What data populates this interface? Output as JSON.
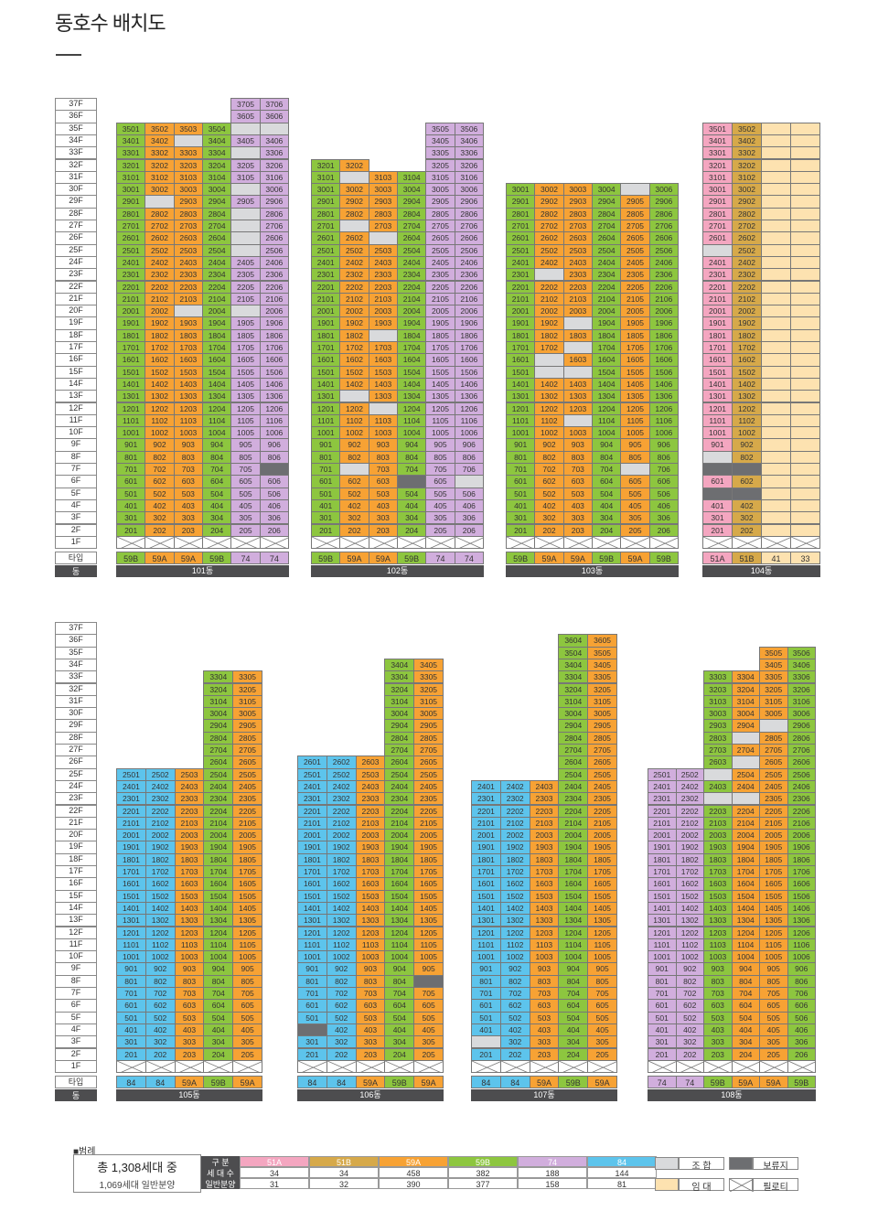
{
  "page": {
    "title": "동호수 배치도"
  },
  "colors": {
    "59B": "#8dc63f",
    "59A": "#f7a234",
    "74": "#d1aedd",
    "84": "#5dc4ec",
    "51A": "#f4a6c0",
    "51B": "#d6a94a",
    "J": "#d9dadc",
    "B": "#6d6e71",
    "R": "#fde2b0"
  },
  "labels": {
    "type_row": "타입",
    "dong_row": "동"
  },
  "floor_labels": [
    "37F",
    "36F",
    "35F",
    "34F",
    "33F",
    "32F",
    "31F",
    "30F",
    "29F",
    "28F",
    "27F",
    "26F",
    "25F",
    "24F",
    "23F",
    "22F",
    "21F",
    "20F",
    "19F",
    "18F",
    "17F",
    "16F",
    "15F",
    "14F",
    "13F",
    "12F",
    "11F",
    "10F",
    "9F",
    "8F",
    "7F",
    "6F",
    "5F",
    "4F",
    "3F",
    "2F",
    "1F"
  ],
  "buildings": [
    {
      "name": "101동",
      "types": [
        "59B",
        "59A",
        "59A",
        "59B",
        "74",
        "74"
      ],
      "columns": [
        {
          "top": 35,
          "overrides": {}
        },
        {
          "top": 35,
          "overrides": {
            "29": "J"
          }
        },
        {
          "top": 35,
          "overrides": {
            "34": "J",
            "20": "J"
          }
        },
        {
          "top": 35,
          "overrides": {}
        },
        {
          "top": 37,
          "overrides": {
            "35": "J",
            "33": "J",
            "30": "J",
            "28": "J",
            "27": "J",
            "26": "J",
            "25": "J",
            "20": "J"
          }
        },
        {
          "top": 37,
          "overrides": {
            "35": "J",
            "7": "B"
          }
        }
      ]
    },
    {
      "name": "102동",
      "types": [
        "59B",
        "59A",
        "59A",
        "59B",
        "74",
        "74"
      ],
      "columns": [
        {
          "top": 32,
          "overrides": {}
        },
        {
          "top": 32,
          "overrides": {
            "31": "J",
            "27": "J",
            "13": "J",
            "7": "J"
          }
        },
        {
          "top": 31,
          "overrides": {
            "26": "J",
            "18": "J",
            "12": "J"
          }
        },
        {
          "top": 31,
          "overrides": {
            "6": "B"
          }
        },
        {
          "top": 35,
          "overrides": {}
        },
        {
          "top": 35,
          "overrides": {
            "6": "J"
          }
        }
      ]
    },
    {
      "name": "103동",
      "types": [
        "59B",
        "59A",
        "59A",
        "59B",
        "59A",
        "59B"
      ],
      "columns": [
        {
          "top": 30,
          "overrides": {}
        },
        {
          "top": 30,
          "overrides": {
            "23": "J",
            "16": "J",
            "15": "J"
          }
        },
        {
          "top": 30,
          "overrides": {
            "19": "J",
            "17": "J",
            "15": "J",
            "11": "J"
          }
        },
        {
          "top": 30,
          "overrides": {}
        },
        {
          "top": 30,
          "overrides": {
            "30": "J",
            "7": "J"
          }
        },
        {
          "top": 30,
          "overrides": {}
        }
      ]
    },
    {
      "name": "104동",
      "types": [
        "51A",
        "51B",
        "41",
        "33"
      ],
      "columns": [
        {
          "top": 35,
          "overrides": {
            "25": "J",
            "8": "J",
            "7": "B",
            "5": "B"
          }
        },
        {
          "top": 35,
          "overrides": {
            "7": "B",
            "5": "B"
          }
        },
        {
          "top": 35,
          "rental": true,
          "overrides": {}
        },
        {
          "top": 35,
          "rental": true,
          "overrides": {}
        }
      ]
    },
    {
      "name": "105동",
      "types": [
        "84",
        "84",
        "59A",
        "59B",
        "59A"
      ],
      "columns": [
        {
          "top": 25,
          "overrides": {}
        },
        {
          "top": 25,
          "overrides": {}
        },
        {
          "top": 25,
          "overrides": {}
        },
        {
          "top": 33,
          "overrides": {}
        },
        {
          "top": 33,
          "overrides": {}
        }
      ]
    },
    {
      "name": "106동",
      "types": [
        "84",
        "84",
        "59A",
        "59B",
        "59A"
      ],
      "columns": [
        {
          "top": 26,
          "overrides": {
            "4": "B"
          }
        },
        {
          "top": 26,
          "overrides": {}
        },
        {
          "top": 26,
          "overrides": {}
        },
        {
          "top": 34,
          "overrides": {}
        },
        {
          "top": 34,
          "overrides": {
            "8": "B"
          }
        }
      ]
    },
    {
      "name": "107동",
      "types": [
        "84",
        "84",
        "59A",
        "59B",
        "59A"
      ],
      "columns": [
        {
          "top": 24,
          "overrides": {
            "3": "J"
          }
        },
        {
          "top": 24,
          "overrides": {}
        },
        {
          "top": 24,
          "overrides": {}
        },
        {
          "top": 36,
          "overrides": {}
        },
        {
          "top": 36,
          "overrides": {}
        }
      ]
    },
    {
      "name": "108동",
      "types": [
        "74",
        "74",
        "59B",
        "59A",
        "59A",
        "59B"
      ],
      "columns": [
        {
          "top": 25,
          "overrides": {}
        },
        {
          "top": 25,
          "overrides": {}
        },
        {
          "top": 33,
          "overrides": {
            "25": "J",
            "23": "J"
          }
        },
        {
          "top": 33,
          "overrides": {
            "28": "J",
            "26": "J",
            "23": "J"
          }
        },
        {
          "top": 35,
          "overrides": {
            "29": "J"
          }
        },
        {
          "top": 35,
          "overrides": {}
        }
      ]
    }
  ],
  "legend": {
    "heading": "■범례",
    "total": "총 1,308세대 중",
    "general": "1,069세대 일반분양",
    "row_headers": [
      "구 분",
      "세 대 수",
      "일반분양"
    ],
    "types": [
      "51A",
      "51B",
      "59A",
      "59B",
      "74",
      "84"
    ],
    "households": [
      "34",
      "34",
      "458",
      "382",
      "188",
      "144"
    ],
    "general_sale": [
      "31",
      "32",
      "390",
      "377",
      "158",
      "81"
    ],
    "keys": [
      "조 합",
      "보류지",
      "임 대",
      "필로티"
    ]
  }
}
